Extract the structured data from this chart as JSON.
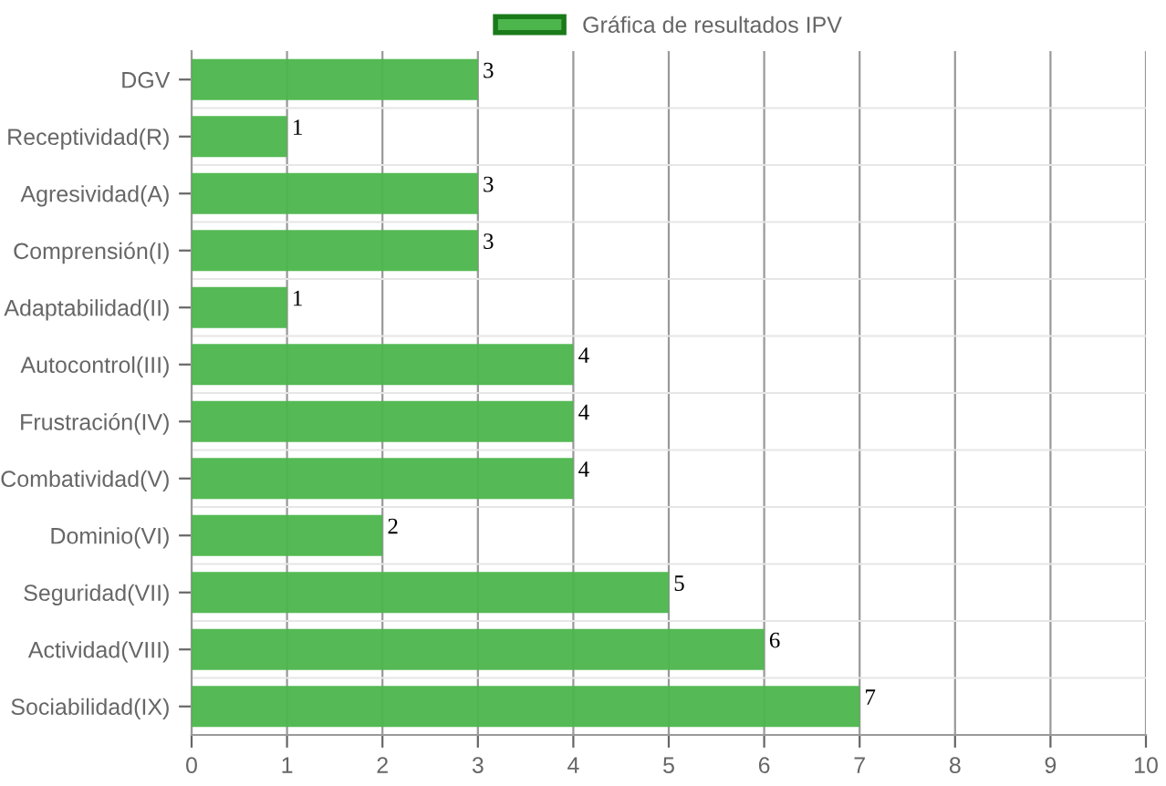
{
  "chart_data": {
    "type": "bar",
    "orientation": "horizontal",
    "categories": [
      "DGV",
      "Receptividad(R)",
      "Agresividad(A)",
      "Comprensión(I)",
      "Adaptabilidad(II)",
      "Autocontrol(III)",
      "Frustración(IV)",
      "Combatividad(V)",
      "Dominio(VI)",
      "Seguridad(VII)",
      "Actividad(VIII)",
      "Sociabilidad(IX)"
    ],
    "series": [
      {
        "name": "Gráfica de resultados IPV",
        "color": "#4cb64c",
        "values": [
          3,
          1,
          3,
          3,
          1,
          4,
          4,
          4,
          2,
          5,
          6,
          7
        ]
      }
    ],
    "xlim": [
      0,
      10
    ],
    "xticks": [
      0,
      1,
      2,
      3,
      4,
      5,
      6,
      7,
      8,
      9,
      10
    ],
    "grid": true,
    "legend": "top",
    "data_labels": true
  }
}
